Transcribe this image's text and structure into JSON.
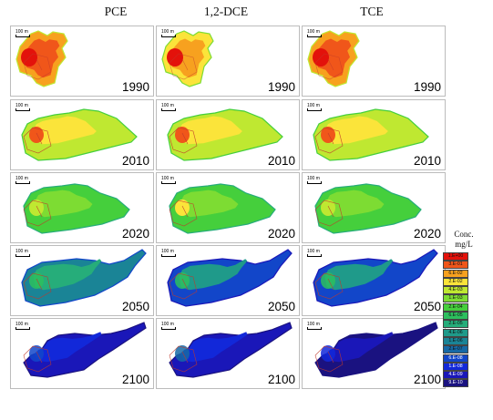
{
  "columns": [
    {
      "label": "PCE"
    },
    {
      "label": "1,2-DCE"
    },
    {
      "label": "TCE"
    }
  ],
  "rows": [
    {
      "year": "1990"
    },
    {
      "year": "2010"
    },
    {
      "year": "2020"
    },
    {
      "year": "2050"
    },
    {
      "year": "2100"
    }
  ],
  "scale_bar": "100 m",
  "legend": {
    "title_line1": "Conc.",
    "title_line2": "mg/L",
    "items": [
      {
        "label": "1.E+00",
        "color": "#e3120b"
      },
      {
        "label": "3.E-01",
        "color": "#f0561a"
      },
      {
        "label": "6.E-02",
        "color": "#f7a11f"
      },
      {
        "label": "2.E-02",
        "color": "#fbe43a"
      },
      {
        "label": "4.E-03",
        "color": "#bfe831"
      },
      {
        "label": "1.E-03",
        "color": "#7ddc33"
      },
      {
        "label": "2.E-04",
        "color": "#45cf3c"
      },
      {
        "label": "6.E-05",
        "color": "#2dbf5e"
      },
      {
        "label": "2.E-05",
        "color": "#26ad7a"
      },
      {
        "label": "4.E-06",
        "color": "#1f9a8a"
      },
      {
        "label": "1.E-06",
        "color": "#1a8496"
      },
      {
        "label": "2.E-07",
        "color": "#1669a5"
      },
      {
        "label": "6.E-08",
        "color": "#1246c9"
      },
      {
        "label": "1.E-08",
        "color": "#1228d9"
      },
      {
        "label": "4.E-09",
        "color": "#1a17b8"
      },
      {
        "label": "9.E-10",
        "color": "#1a1280"
      }
    ]
  }
}
